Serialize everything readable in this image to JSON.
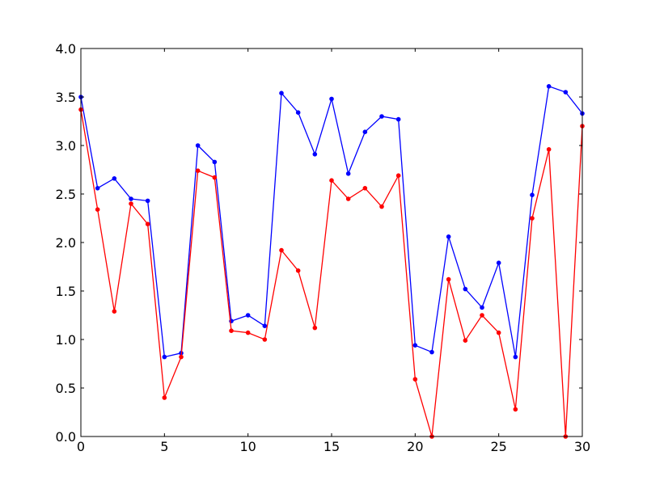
{
  "chart_data": {
    "type": "line",
    "title": "",
    "xlabel": "",
    "ylabel": "",
    "xlim": [
      0,
      30
    ],
    "ylim": [
      0.0,
      4.0
    ],
    "grid": false,
    "legend": "none",
    "x_ticks": [
      "0",
      "5",
      "10",
      "15",
      "20",
      "25",
      "30"
    ],
    "y_ticks": [
      "0.0",
      "0.5",
      "1.0",
      "1.5",
      "2.0",
      "2.5",
      "3.0",
      "3.5",
      "4.0"
    ],
    "x": [
      0,
      1,
      2,
      3,
      4,
      5,
      6,
      7,
      8,
      9,
      10,
      11,
      12,
      13,
      14,
      15,
      16,
      17,
      18,
      19,
      20,
      21,
      22,
      23,
      24,
      25,
      26,
      27,
      28,
      29,
      30
    ],
    "series": [
      {
        "color": "#0000ff",
        "marker": "dot",
        "values": [
          3.5,
          2.56,
          2.66,
          2.45,
          2.43,
          0.82,
          0.86,
          3.0,
          2.83,
          1.19,
          1.25,
          1.14,
          3.54,
          3.34,
          2.91,
          3.48,
          2.71,
          3.14,
          3.3,
          3.27,
          0.94,
          0.87,
          2.06,
          1.52,
          1.33,
          1.79,
          0.82,
          2.49,
          3.61,
          3.55,
          3.33
        ]
      },
      {
        "color": "#ff0000",
        "marker": "dot",
        "values": [
          3.37,
          2.34,
          1.29,
          2.4,
          2.19,
          0.4,
          0.82,
          2.74,
          2.67,
          1.09,
          1.07,
          1.0,
          1.92,
          1.71,
          1.12,
          2.64,
          2.45,
          2.56,
          2.37,
          2.69,
          0.59,
          0.0,
          1.62,
          0.99,
          1.25,
          1.07,
          0.28,
          2.25,
          2.96,
          0.0,
          3.2
        ]
      }
    ]
  }
}
